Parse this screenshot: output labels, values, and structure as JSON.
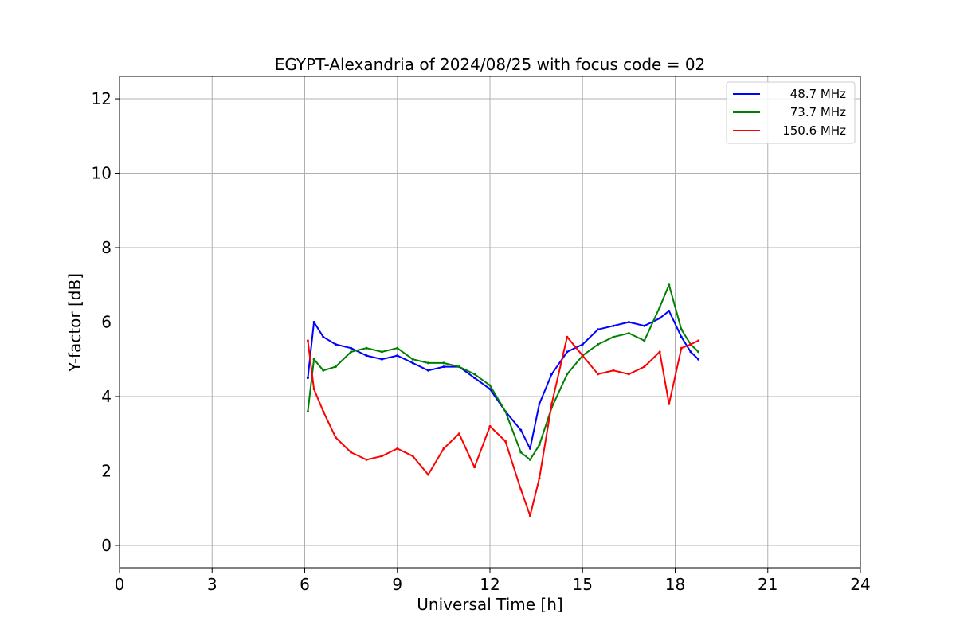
{
  "chart_data": {
    "type": "line",
    "title": "EGYPT-Alexandria of 2024/08/25 with focus code = 02",
    "xlabel": "Universal Time [h]",
    "ylabel": "Y-factor [dB]",
    "xlim": [
      0,
      24
    ],
    "ylim": [
      -0.6,
      12.6
    ],
    "xticks": [
      0,
      3,
      6,
      9,
      12,
      15,
      18,
      21,
      24
    ],
    "yticks": [
      0,
      2,
      4,
      6,
      8,
      10,
      12
    ],
    "xtick_labels": [
      "0",
      "3",
      "6",
      "9",
      "12",
      "15",
      "18",
      "21",
      "24"
    ],
    "ytick_labels": [
      "0",
      "2",
      "4",
      "6",
      "8",
      "10",
      "12"
    ],
    "grid": true,
    "legend_position": "top-right",
    "series": [
      {
        "name": "48.7 MHz",
        "color": "#0000ff",
        "x": [
          6.1,
          6.3,
          6.6,
          7.0,
          7.5,
          8.0,
          8.5,
          9.0,
          9.5,
          10.0,
          10.5,
          11.0,
          11.5,
          12.0,
          12.5,
          13.0,
          13.3,
          13.6,
          14.0,
          14.5,
          15.0,
          15.5,
          16.0,
          16.5,
          17.0,
          17.5,
          17.8,
          18.2,
          18.5,
          18.75
        ],
        "values": [
          4.5,
          6.0,
          5.6,
          5.4,
          5.3,
          5.1,
          5.0,
          5.1,
          4.9,
          4.7,
          4.8,
          4.8,
          4.5,
          4.2,
          3.6,
          3.1,
          2.6,
          3.8,
          4.6,
          5.2,
          5.4,
          5.8,
          5.9,
          6.0,
          5.9,
          6.1,
          6.3,
          5.6,
          5.2,
          5.0
        ]
      },
      {
        "name": "73.7 MHz",
        "color": "#008000",
        "x": [
          6.1,
          6.3,
          6.6,
          7.0,
          7.5,
          8.0,
          8.5,
          9.0,
          9.5,
          10.0,
          10.5,
          11.0,
          11.5,
          12.0,
          12.5,
          13.0,
          13.3,
          13.6,
          14.0,
          14.5,
          15.0,
          15.5,
          16.0,
          16.5,
          17.0,
          17.5,
          17.8,
          18.2,
          18.5,
          18.75
        ],
        "values": [
          3.6,
          5.0,
          4.7,
          4.8,
          5.2,
          5.3,
          5.2,
          5.3,
          5.0,
          4.9,
          4.9,
          4.8,
          4.6,
          4.3,
          3.6,
          2.5,
          2.3,
          2.7,
          3.7,
          4.6,
          5.1,
          5.4,
          5.6,
          5.7,
          5.5,
          6.4,
          7.0,
          5.8,
          5.4,
          5.2
        ]
      },
      {
        "name": "150.6 MHz",
        "color": "#ff0000",
        "x": [
          6.1,
          6.3,
          6.6,
          7.0,
          7.5,
          8.0,
          8.5,
          9.0,
          9.5,
          10.0,
          10.5,
          11.0,
          11.5,
          12.0,
          12.5,
          13.0,
          13.3,
          13.6,
          14.0,
          14.5,
          15.0,
          15.5,
          16.0,
          16.5,
          17.0,
          17.5,
          17.8,
          18.2,
          18.5,
          18.75
        ],
        "values": [
          5.5,
          4.2,
          3.6,
          2.9,
          2.5,
          2.3,
          2.4,
          2.6,
          2.4,
          1.9,
          2.6,
          3.0,
          2.1,
          3.2,
          2.8,
          1.5,
          0.8,
          1.8,
          3.8,
          5.6,
          5.1,
          4.6,
          4.7,
          4.6,
          4.8,
          5.2,
          3.8,
          5.3,
          5.4,
          5.5
        ]
      }
    ]
  }
}
